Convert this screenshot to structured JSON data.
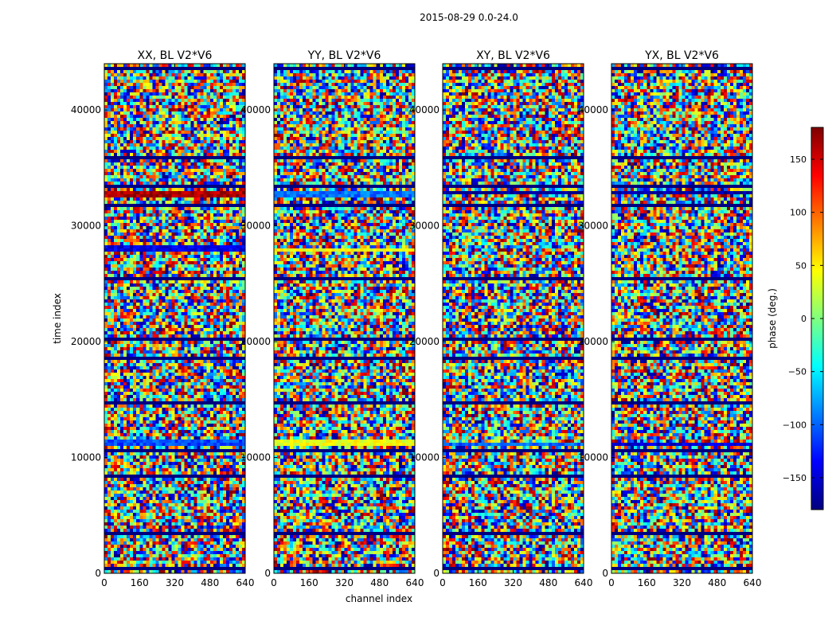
{
  "figure": {
    "suptitle": "2015-08-29 0.0-24.0",
    "colorbar_label": "phase (deg.)",
    "colorbar_ticks": [
      150,
      100,
      50,
      0,
      -50,
      -100,
      -150
    ],
    "colorbar_range": [
      -180,
      180
    ],
    "colorbar_ticks_fmt": [
      "150",
      "100",
      "50",
      "0",
      "−50",
      "−100",
      "−150"
    ],
    "colormap": [
      "#00007f",
      "#0000ff",
      "#007fff",
      "#00ffff",
      "#7fff7f",
      "#ffff00",
      "#ff7f00",
      "#ff0000",
      "#7f0000"
    ]
  },
  "chart_data": [
    {
      "type": "heatmap",
      "title": "XX, BL V2*V6",
      "xlabel": "",
      "ylabel": "time index",
      "xlim": [
        0,
        640
      ],
      "ylim": [
        0,
        44000
      ],
      "xticks": [
        0,
        160,
        320,
        480,
        640
      ],
      "yticks": [
        0,
        10000,
        20000,
        30000,
        40000
      ],
      "value_range_deg": [
        -180,
        180
      ],
      "content": "noisy phase values across all channels with horizontal dark-blue flagged bands",
      "coherent_bands": [
        {
          "t_start": 32500,
          "t_end": 33100,
          "phase_deg": 165
        },
        {
          "t_start": 27700,
          "t_end": 28200,
          "phase_deg": -145
        },
        {
          "t_start": 10900,
          "t_end": 11500,
          "phase_deg": -110
        }
      ],
      "flagged_bands": [
        500,
        3500,
        8500,
        10500,
        14800,
        18500,
        20300,
        25500,
        31800,
        33500,
        36000,
        43500
      ]
    },
    {
      "type": "heatmap",
      "title": "YY, BL V2*V6",
      "xlabel": "channel index",
      "ylabel": "",
      "xlim": [
        0,
        640
      ],
      "ylim": [
        0,
        44000
      ],
      "xticks": [
        0,
        160,
        320,
        480,
        640
      ],
      "yticks": [
        0,
        10000,
        20000,
        30000,
        40000
      ],
      "value_range_deg": [
        -180,
        180
      ],
      "content": "noisy phase values across all channels with horizontal dark-blue flagged bands",
      "coherent_bands": [
        {
          "t_start": 32500,
          "t_end": 33100,
          "phase_deg": -95
        },
        {
          "t_start": 25200,
          "t_end": 25700,
          "phase_deg": 75
        },
        {
          "t_start": 27800,
          "t_end": 28100,
          "phase_deg": 40
        },
        {
          "t_start": 10900,
          "t_end": 11500,
          "phase_deg": 40
        }
      ],
      "flagged_bands": [
        500,
        3500,
        8500,
        10500,
        14800,
        18500,
        20300,
        25500,
        31800,
        33500,
        36000,
        43500
      ]
    },
    {
      "type": "heatmap",
      "title": "XY, BL V2*V6",
      "xlabel": "",
      "ylabel": "",
      "xlim": [
        0,
        640
      ],
      "ylim": [
        0,
        44000
      ],
      "xticks": [
        0,
        160,
        320,
        480,
        640
      ],
      "yticks": [
        0,
        10000,
        20000,
        30000,
        40000
      ],
      "value_range_deg": [
        -180,
        180
      ],
      "content": "noisy phase values across all channels with horizontal dark-blue flagged bands",
      "coherent_bands": [
        {
          "t_start": 32600,
          "t_end": 33000,
          "phase_deg": -170
        },
        {
          "t_start": 11000,
          "t_end": 11400,
          "phase_deg": -100
        }
      ],
      "flagged_bands": [
        500,
        3500,
        8500,
        10500,
        14800,
        18500,
        20300,
        25500,
        31800,
        33500,
        36000,
        43500
      ]
    },
    {
      "type": "heatmap",
      "title": "YX, BL V2*V6",
      "xlabel": "",
      "ylabel": "",
      "xlim": [
        0,
        640
      ],
      "ylim": [
        0,
        44000
      ],
      "xticks": [
        0,
        160,
        320,
        480,
        640
      ],
      "yticks": [
        0,
        10000,
        20000,
        30000,
        40000
      ],
      "value_range_deg": [
        -180,
        180
      ],
      "content": "noisy phase values across all channels with horizontal dark-blue flagged bands",
      "coherent_bands": [
        {
          "t_start": 32600,
          "t_end": 33000,
          "phase_deg": -170
        },
        {
          "t_start": 11000,
          "t_end": 11400,
          "phase_deg": -150
        }
      ],
      "flagged_bands": [
        500,
        3500,
        8500,
        10500,
        14800,
        18500,
        20300,
        25500,
        31800,
        33500,
        36000,
        43500
      ]
    }
  ]
}
